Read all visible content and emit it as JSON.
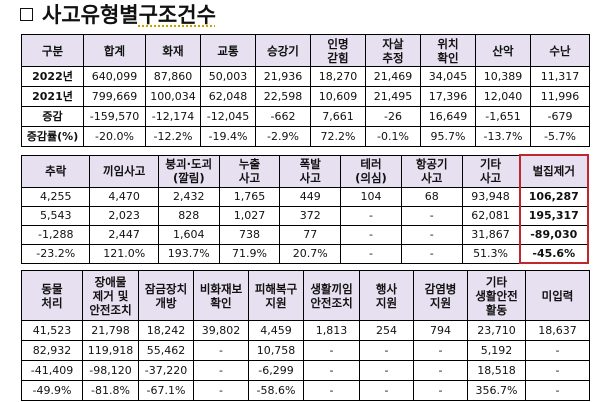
{
  "title": {
    "icon": "checkbox-square-icon",
    "text_main": "사고유형별 ",
    "text_underlined": "구조건수"
  },
  "table1": {
    "headers": [
      "구분",
      "합계",
      "화재",
      "교통",
      "승강기",
      "인명\n갇힘",
      "자살\n추정",
      "위치\n확인",
      "산악",
      "수난"
    ],
    "rows": [
      {
        "label": "2022년",
        "values": [
          "640,099",
          "87,860",
          "50,003",
          "21,936",
          "18,270",
          "21,469",
          "34,045",
          "10,389",
          "11,317"
        ]
      },
      {
        "label": "2021년",
        "values": [
          "799,669",
          "100,034",
          "62,048",
          "22,598",
          "10,609",
          "21,495",
          "17,396",
          "12,040",
          "11,996"
        ]
      },
      {
        "label": "증감",
        "values": [
          "-159,570",
          "-12,174",
          "-12,045",
          "-662",
          "7,661",
          "-26",
          "16,649",
          "-1,651",
          "-679"
        ]
      },
      {
        "label": "증감률(%)",
        "values": [
          "-20.0%",
          "-12.2%",
          "-19.4%",
          "-2.9%",
          "72.2%",
          "-0.1%",
          "95.7%",
          "-13.7%",
          "-5.7%"
        ]
      }
    ]
  },
  "table2": {
    "headers": [
      "추락",
      "끼임사고",
      "붕괴·도괴\n(깔림)",
      "누출\n사고",
      "폭발\n사고",
      "테러\n(의심)",
      "항공기\n사고",
      "기타\n사고",
      "벌집제거"
    ],
    "rows": [
      [
        "4,255",
        "4,470",
        "2,432",
        "1,765",
        "449",
        "104",
        "68",
        "93,948",
        "106,287"
      ],
      [
        "5,543",
        "2,023",
        "828",
        "1,027",
        "372",
        "-",
        "-",
        "62,081",
        "195,317"
      ],
      [
        "-1,288",
        "2,447",
        "1,604",
        "738",
        "77",
        "-",
        "-",
        "31,867",
        "-89,030"
      ],
      [
        "-23.2%",
        "121.0%",
        "193.7%",
        "71.9%",
        "20.7%",
        "-",
        "-",
        "51.3%",
        "-45.6%"
      ]
    ],
    "highlight_color": "#c0262d"
  },
  "table3": {
    "headers": [
      "동물\n처리",
      "장애물\n제거 및\n안전조치",
      "잠금장치\n개방",
      "비화재보\n확인",
      "피해복구\n지원",
      "생활끼임\n안전조치",
      "행사\n지원",
      "감염병\n지원",
      "기타\n생활안전\n활동",
      "미입력"
    ],
    "rows": [
      [
        "41,523",
        "21,798",
        "18,242",
        "39,802",
        "4,459",
        "1,813",
        "254",
        "794",
        "23,710",
        "18,637"
      ],
      [
        "82,932",
        "119,918",
        "55,462",
        "-",
        "10,758",
        "-",
        "-",
        "-",
        "5,192",
        "-"
      ],
      [
        "-41,409",
        "-98,120",
        "-37,220",
        "-",
        "-6,299",
        "-",
        "-",
        "-",
        "18,518",
        "-"
      ],
      [
        "-49.9%",
        "-81.8%",
        "-67.1%",
        "-",
        "-58.6%",
        "-",
        "-",
        "-",
        "356.7%",
        "-"
      ]
    ]
  },
  "colors": {
    "header_bg": "#e6e0f0",
    "highlight_border": "#c0262d",
    "border": "#000000"
  }
}
